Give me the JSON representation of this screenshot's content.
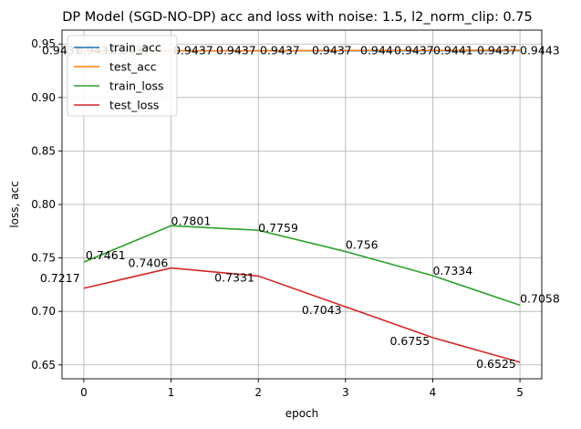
{
  "chart_data": {
    "type": "line",
    "title": "DP Model (SGD-NO-DP) acc and loss with noise: 1.5, l2_norm_clip: 0.75",
    "xlabel": "epoch",
    "ylabel": "loss, acc",
    "x": [
      0,
      1,
      2,
      3,
      4,
      5
    ],
    "xlim": [
      -0.25,
      5.25
    ],
    "ylim": [
      0.637,
      0.963
    ],
    "xticks": [
      "0",
      "1",
      "2",
      "3",
      "4",
      "5"
    ],
    "yticks": [
      "0.65",
      "0.70",
      "0.75",
      "0.80",
      "0.85",
      "0.90",
      "0.95"
    ],
    "grid": true,
    "legend_position": "top-left",
    "series": [
      {
        "name": "train_acc",
        "color": "#1f77b4",
        "values": [
          0.9437,
          0.9437,
          0.9437,
          0.9437,
          0.9437,
          0.9437
        ],
        "labels": []
      },
      {
        "name": "test_acc",
        "color": "#ff7f0e",
        "values": [
          0.9437,
          0.9437,
          0.9437,
          0.944,
          0.9441,
          0.9443
        ],
        "labels": [
          "0.9437",
          "0.9437",
          "0.9437",
          "0.944",
          "0.9441",
          "0.9443"
        ]
      },
      {
        "name": "train_loss",
        "color": "#2ca02c",
        "values": [
          0.7461,
          0.7801,
          0.7759,
          0.756,
          0.7334,
          0.7058
        ],
        "labels": [
          "0.7461",
          "0.7801",
          "0.7759",
          "0.756",
          "0.7334",
          "0.7058"
        ]
      },
      {
        "name": "test_loss",
        "color": "#d62728",
        "values": [
          0.7217,
          0.7406,
          0.7331,
          0.7043,
          0.6755,
          0.6525
        ],
        "labels": [
          "0.7217",
          "0.7406",
          "0.7331",
          "0.7043",
          "0.6755",
          "0.6525"
        ]
      }
    ],
    "top_row_labels": [
      "0.9437",
      "0.9437",
      "0.9437",
      "0.9437",
      "0.9437",
      "0.9437",
      "0.9437",
      "0.944",
      "0.9437",
      "0.9441",
      "0.9437",
      "0.9443",
      "0.9437"
    ]
  }
}
